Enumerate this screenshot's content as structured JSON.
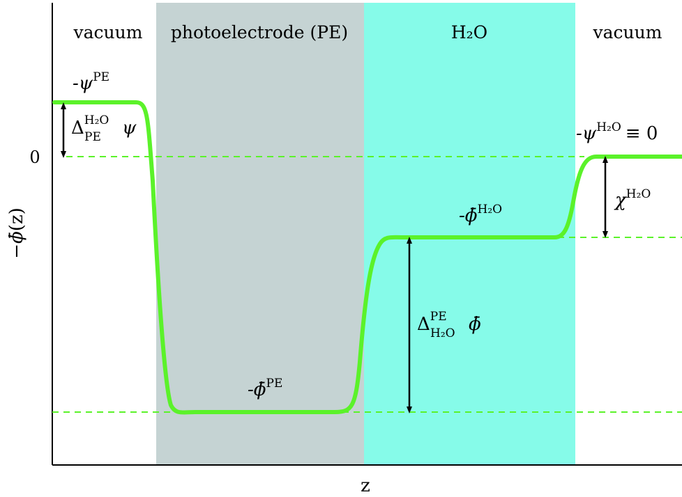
{
  "regions": [
    {
      "label": "vacuum",
      "color": "#ffffff"
    },
    {
      "label": "photoelectrode (PE)",
      "color": "#c5d3d3"
    },
    {
      "label": "H₂O",
      "color": "#86fbe9"
    },
    {
      "label": "vacuum",
      "color": "#ffffff"
    }
  ],
  "axes": {
    "x_label": "z",
    "y_label_sign": "−",
    "y_label_phi": "ϕ̄",
    "y_label_arg": "(z)",
    "y_tick_zero": "0"
  },
  "levels": {
    "psi_pe": "-ψ",
    "psi_pe_sup": "PE",
    "phi_h2o": "-ϕ̄",
    "phi_h2o_sup": "H₂O",
    "phi_pe": "-ϕ̄",
    "phi_pe_sup": "PE",
    "psi_h2o": "-ψ",
    "psi_h2o_sup": "H₂O",
    "psi_h2o_eq": "≡ 0"
  },
  "differences": {
    "delta_psi_main": "Δ",
    "delta_psi_sup": "H₂O",
    "delta_psi_sub": "PE",
    "delta_psi_tail": "ψ",
    "delta_phi_main": "Δ",
    "delta_phi_sup": "PE",
    "delta_phi_sub": "H₂O",
    "delta_phi_tail": "ϕ̄",
    "chi_main": "χ",
    "chi_sup": "H₂O"
  },
  "colors": {
    "curve": "#5bf22a",
    "dashed": "#5bf22a",
    "arrow": "#000000"
  }
}
